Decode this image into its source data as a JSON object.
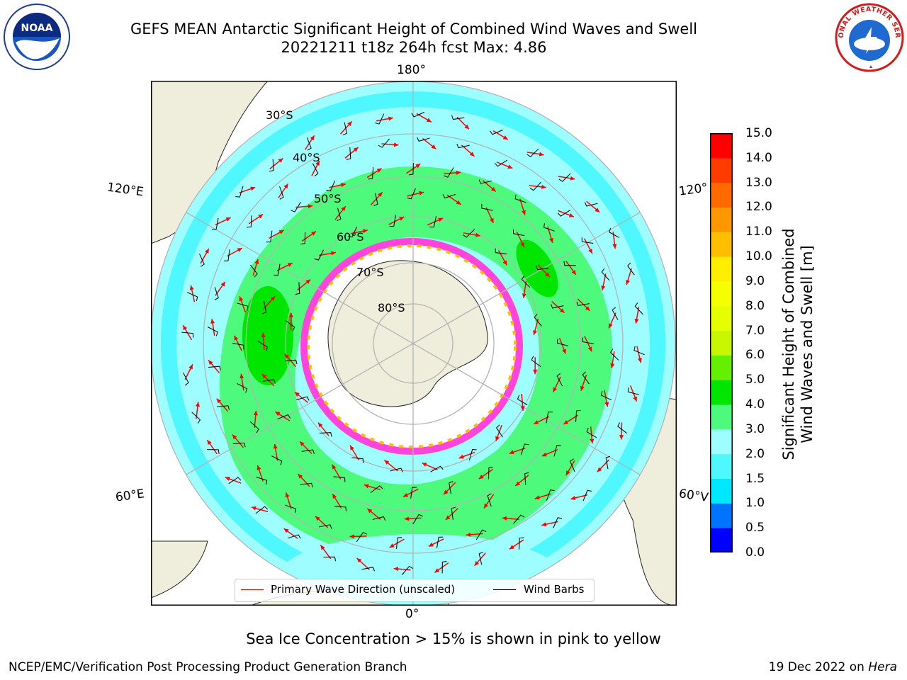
{
  "title": {
    "line1": "GEFS MEAN Antarctic Significant Height of Combined Wind Waves and Swell",
    "line2": "20221211 t18z 264h fcst   Max: 4.86"
  },
  "logos": {
    "left": {
      "icon": "noaa-logo-icon",
      "text": "NOAA"
    },
    "right": {
      "icon": "national-weather-service-logo-icon",
      "text": "NATIONAL WEATHER SERVICE"
    }
  },
  "map": {
    "projection": "south-polar-stereographic",
    "land_color": "#efeddc",
    "grid_color": "#b4b4b4",
    "lon_labels": {
      "top": "180°",
      "bottom": "0°",
      "upper_left": "120°E",
      "lower_left": "60°E",
      "upper_right": "120°",
      "lower_right": "60°V"
    },
    "lat_labels": [
      "30°S",
      "40°S",
      "50°S",
      "60°S",
      "70°S",
      "80°S"
    ]
  },
  "colorbar": {
    "label_line1": "Significant Height of Combined",
    "label_line2": "Wind Waves and Swell [m]",
    "ticks": [
      "15.0",
      "14.0",
      "13.0",
      "12.0",
      "11.0",
      "10.0",
      "9.0",
      "8.0",
      "7.0",
      "6.0",
      "5.0",
      "4.0",
      "3.0",
      "2.0",
      "1.5",
      "1.0",
      "0.5",
      "0.0"
    ],
    "bands": [
      {
        "from": 0.0,
        "to": 0.5,
        "color": "#0000ff"
      },
      {
        "from": 0.5,
        "to": 1.0,
        "color": "#0073ff"
      },
      {
        "from": 1.0,
        "to": 1.5,
        "color": "#00e8ff"
      },
      {
        "from": 1.5,
        "to": 2.0,
        "color": "#4ff7ff"
      },
      {
        "from": 2.0,
        "to": 3.0,
        "color": "#9dfdff"
      },
      {
        "from": 3.0,
        "to": 4.0,
        "color": "#4dfa7c"
      },
      {
        "from": 4.0,
        "to": 5.0,
        "color": "#00e600"
      },
      {
        "from": 5.0,
        "to": 6.0,
        "color": "#64f000"
      },
      {
        "from": 6.0,
        "to": 7.0,
        "color": "#c8f500"
      },
      {
        "from": 7.0,
        "to": 8.0,
        "color": "#e6ff00"
      },
      {
        "from": 8.0,
        "to": 9.0,
        "color": "#f5ff00"
      },
      {
        "from": 9.0,
        "to": 10.0,
        "color": "#ffee00"
      },
      {
        "from": 10.0,
        "to": 11.0,
        "color": "#ffbe00"
      },
      {
        "from": 11.0,
        "to": 12.0,
        "color": "#ff9800"
      },
      {
        "from": 12.0,
        "to": 13.0,
        "color": "#ff6a00"
      },
      {
        "from": 13.0,
        "to": 14.0,
        "color": "#ff3c00"
      },
      {
        "from": 14.0,
        "to": 15.0,
        "color": "#ff0000"
      }
    ]
  },
  "legend": {
    "primary_wave": "Primary Wave Direction (unscaled)",
    "primary_wave_color": "#ff0000",
    "wind_barbs": "Wind Barbs",
    "wind_barbs_color": "#000000"
  },
  "caption": "Sea Ice Concentration > 15% is shown in pink to yellow",
  "footer": {
    "left": "NCEP/EMC/Verification Post Processing Product Generation Branch",
    "right_prefix": "19 Dec 2022 on ",
    "right_italic": "Hera"
  }
}
